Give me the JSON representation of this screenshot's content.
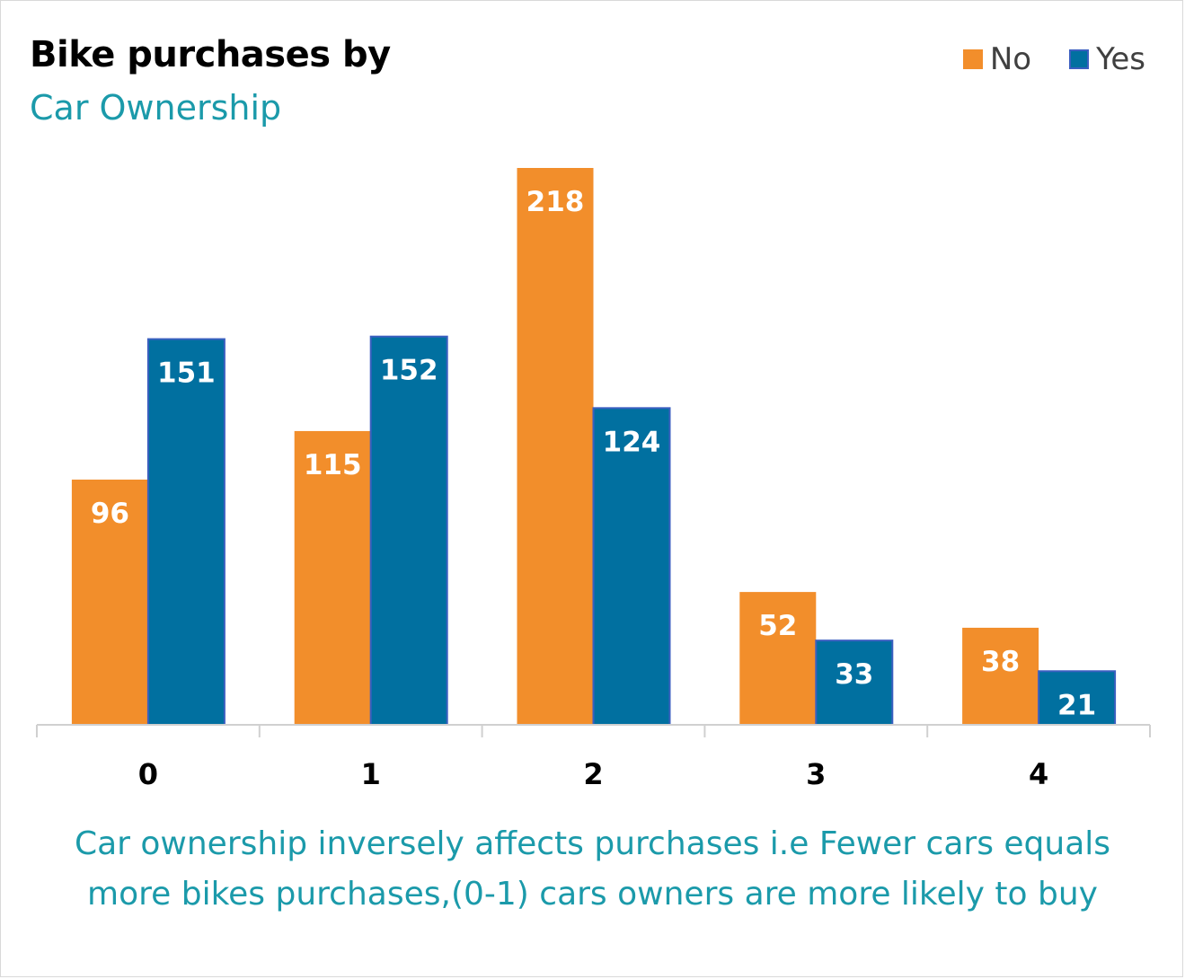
{
  "title": "Bike purchases by",
  "subtitle": "Car Ownership",
  "caption_lines": [
    "Car ownership inversely affects purchases i.e Fewer cars equals",
    "more bikes purchases,(0-1) cars owners are more likely to buy"
  ],
  "colors": {
    "no": "#f28e2b",
    "yes": "#0170a0",
    "yes_border": "#3b5fc0",
    "subtitle": "#1b9aaa",
    "axis": "#d0d0d0"
  },
  "chart_data": {
    "type": "bar",
    "title": "Bike purchases by",
    "subtitle": "Car Ownership",
    "categories": [
      "0",
      "1",
      "2",
      "3",
      "4"
    ],
    "series": [
      {
        "name": "No",
        "values": [
          96,
          115,
          218,
          52,
          38
        ]
      },
      {
        "name": "Yes",
        "values": [
          151,
          152,
          124,
          33,
          21
        ]
      }
    ],
    "ylim": [
      0,
      218
    ],
    "grid": false,
    "legend_position": "top-right",
    "data_labels": true
  }
}
